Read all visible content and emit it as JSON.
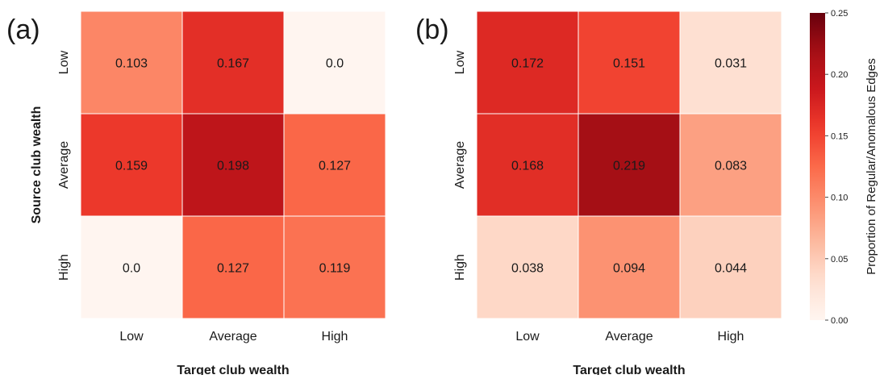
{
  "chart_data": {
    "type": "heatmap",
    "panels": [
      {
        "panel_label": "(a)",
        "xlabel": "Target club wealth",
        "ylabel": "Source club wealth",
        "x_categories": [
          "Low",
          "Average",
          "High"
        ],
        "y_categories": [
          "Low",
          "Average",
          "High"
        ],
        "values": [
          [
            0.103,
            0.167,
            0.0
          ],
          [
            0.159,
            0.198,
            0.127
          ],
          [
            0.0,
            0.127,
            0.119
          ]
        ],
        "value_labels": [
          [
            "0.103",
            "0.167",
            "0.0"
          ],
          [
            "0.159",
            "0.198",
            "0.127"
          ],
          [
            "0.0",
            "0.127",
            "0.119"
          ]
        ]
      },
      {
        "panel_label": "(b)",
        "xlabel": "Target club wealth",
        "ylabel": "",
        "x_categories": [
          "Low",
          "Average",
          "High"
        ],
        "y_categories": [
          "Low",
          "Average",
          "High"
        ],
        "values": [
          [
            0.172,
            0.151,
            0.031
          ],
          [
            0.168,
            0.219,
            0.083
          ],
          [
            0.038,
            0.094,
            0.044
          ]
        ],
        "value_labels": [
          [
            "0.172",
            "0.151",
            "0.031"
          ],
          [
            "0.168",
            "0.219",
            "0.083"
          ],
          [
            "0.038",
            "0.094",
            "0.044"
          ]
        ]
      }
    ],
    "colorbar": {
      "label": "Proportion of Regular/Anomalous Edges",
      "range": [
        0.0,
        0.25
      ],
      "ticks": [
        "0.00",
        "0.05",
        "0.10",
        "0.15",
        "0.20",
        "0.25"
      ],
      "colormap": "Reds",
      "color_low": "#fff5f0",
      "color_high": "#67000d"
    },
    "grid": false,
    "cell_border_color": "#ffffff"
  }
}
